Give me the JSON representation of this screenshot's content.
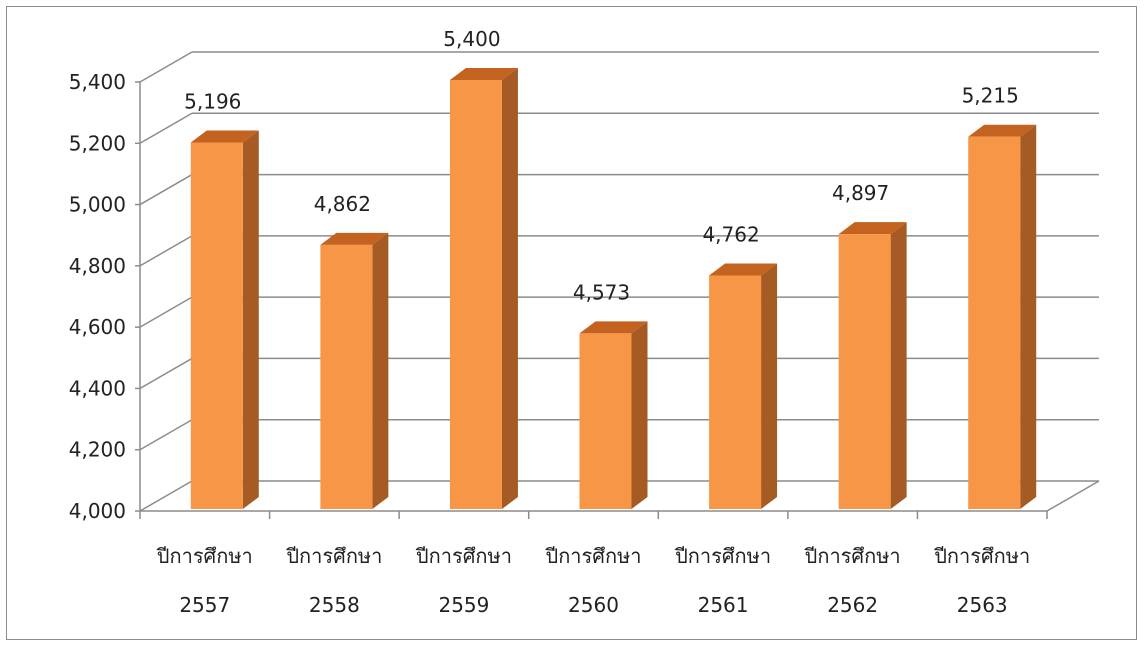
{
  "chart_data": {
    "type": "bar",
    "title": "",
    "xlabel": "",
    "ylabel": "",
    "categories": [
      [
        "ปีการศึกษา",
        "2557"
      ],
      [
        "ปีการศึกษา",
        "2558"
      ],
      [
        "ปีการศึกษา",
        "2559"
      ],
      [
        "ปีการศึกษา",
        "2560"
      ],
      [
        "ปีการศึกษา",
        "2561"
      ],
      [
        "ปีการศึกษา",
        "2562"
      ],
      [
        "ปีการศึกษา",
        "2563"
      ]
    ],
    "values": [
      5196,
      4862,
      5400,
      4573,
      4762,
      4897,
      5215
    ],
    "data_labels": [
      "5,196",
      "4,862",
      "5,400",
      "4,573",
      "4,762",
      "4,897",
      "5,215"
    ],
    "ylim": [
      4000,
      5400
    ],
    "y_ticks": [
      4000,
      4200,
      4400,
      4600,
      4800,
      5000,
      5200,
      5400
    ],
    "y_tick_labels": [
      "4,000",
      "4,200",
      "4,400",
      "4,600",
      "4,800",
      "5,000",
      "5,200",
      "5,400"
    ],
    "grid": true,
    "legend": "none",
    "style": "3d",
    "colors": {
      "bar_front": "#F79646",
      "bar_top": "#C3631F",
      "bar_side": "#A65A24",
      "grid": "#8C8C8C"
    }
  }
}
